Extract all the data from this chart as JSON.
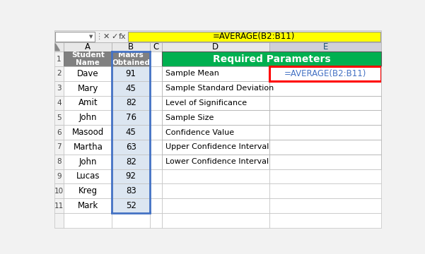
{
  "formula_bar_text": "=AVERAGE(B2:B11)",
  "left_table": {
    "header_bg": "#808080",
    "header_text": "#ffffff",
    "data": [
      [
        "Dave",
        "91"
      ],
      [
        "Mary",
        "45"
      ],
      [
        "Amit",
        "82"
      ],
      [
        "John",
        "76"
      ],
      [
        "Masood",
        "45"
      ],
      [
        "Martha",
        "63"
      ],
      [
        "John",
        "82"
      ],
      [
        "Lucas",
        "92"
      ],
      [
        "Kreg",
        "83"
      ],
      [
        "Mark",
        "52"
      ]
    ],
    "data_bg_A": "#ffffff",
    "data_bg_B": "#dce6f1",
    "border_color": "#4472c4"
  },
  "right_table": {
    "header_text": "Required Parameters",
    "header_bg": "#00b050",
    "header_text_color": "#ffffff",
    "rows": [
      [
        "Sample Mean",
        "=AVERAGE(B2:B11)"
      ],
      [
        "Sample Standard Deviation",
        ""
      ],
      [
        "Level of Significance",
        ""
      ],
      [
        "Sample Size",
        ""
      ],
      [
        "Confidence Value",
        ""
      ],
      [
        "Upper Confidence Interval",
        ""
      ],
      [
        "Lower Confidence Interval",
        ""
      ]
    ],
    "formula_text_color": "#4472c4",
    "formula_border_color": "#ff0000"
  },
  "toolbar_bg": "#f0f0f0",
  "toolbar_formula_bg": "#ffff00",
  "fig_bg": "#f2f2f2",
  "col_header_bg": "#e8e8e8",
  "row_num_bg": "#f2f2f2",
  "E_col_header_bg": "#d0d0d8"
}
